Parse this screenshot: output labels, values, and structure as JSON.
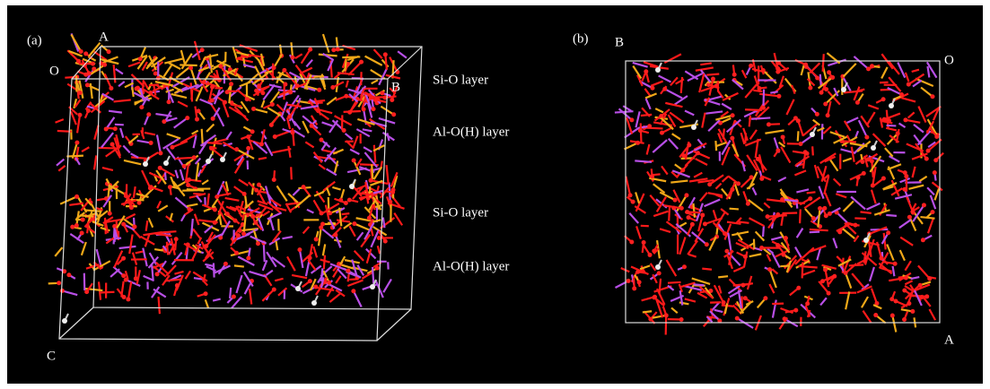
{
  "panel_a": {
    "label": "(a)",
    "axis_labels": {
      "A": "A",
      "O": "O",
      "B": "B",
      "C": "C"
    },
    "layers": [
      "Si-O layer",
      "Al-O(H) layer",
      "Si-O layer",
      "Al-O(H) layer"
    ]
  },
  "panel_b": {
    "label": "(b)",
    "axis_labels": {
      "B": "B",
      "O": "O",
      "A": "A"
    }
  }
}
